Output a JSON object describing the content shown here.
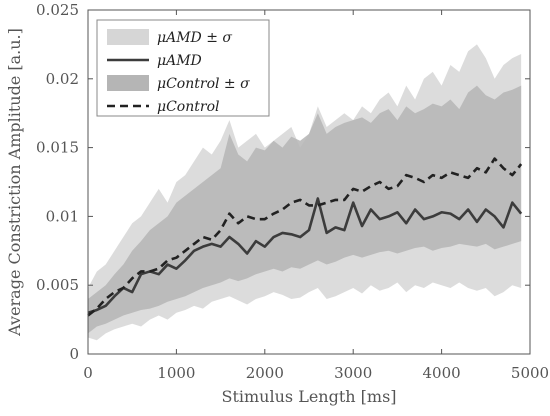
{
  "chart_data": {
    "type": "area",
    "xlabel": "Stimulus Length [ms]",
    "ylabel": "Average Constriction Amplitude [a.u.]",
    "xlim": [
      0,
      5000
    ],
    "ylim": [
      0,
      0.025
    ],
    "xticks": [
      0,
      1000,
      2000,
      3000,
      4000,
      5000
    ],
    "xtick_labels": [
      "0",
      "1000",
      "2000",
      "3000",
      "4000",
      "5000"
    ],
    "yticks": [
      0,
      0.005,
      0.01,
      0.015,
      0.02,
      0.025
    ],
    "ytick_labels": [
      "0",
      "0.005",
      "0.01",
      "0.015",
      "0.02",
      "0.025"
    ],
    "grid": false,
    "legend_position": "top-left",
    "legend": [
      {
        "label": "μAMD ± σ",
        "kind": "band",
        "color": "#d6d6d6"
      },
      {
        "label": "μAMD",
        "kind": "line",
        "color": "#3c3c3c"
      },
      {
        "label": "μControl ± σ",
        "kind": "band",
        "color": "#b5b5b5"
      },
      {
        "label": "μControl",
        "kind": "dashed",
        "color": "#222222"
      }
    ],
    "x": [
      0,
      100,
      200,
      300,
      400,
      500,
      600,
      700,
      800,
      900,
      1000,
      1100,
      1200,
      1300,
      1400,
      1500,
      1600,
      1700,
      1800,
      1900,
      2000,
      2100,
      2200,
      2300,
      2400,
      2500,
      2600,
      2700,
      2800,
      2900,
      3000,
      3100,
      3200,
      3300,
      3400,
      3500,
      3600,
      3700,
      3800,
      3900,
      4000,
      4100,
      4200,
      4300,
      4400,
      4500,
      4600,
      4700,
      4800,
      4900
    ],
    "series": [
      {
        "name": "μAMD ± σ",
        "kind": "band",
        "lower": [
          0.0012,
          0.001,
          0.0015,
          0.0018,
          0.002,
          0.0022,
          0.002,
          0.0025,
          0.0028,
          0.0025,
          0.003,
          0.0032,
          0.0035,
          0.0033,
          0.0038,
          0.004,
          0.0042,
          0.0039,
          0.0036,
          0.004,
          0.0042,
          0.0045,
          0.0043,
          0.004,
          0.0041,
          0.0045,
          0.0048,
          0.004,
          0.0042,
          0.0045,
          0.0048,
          0.0044,
          0.005,
          0.0046,
          0.0048,
          0.0052,
          0.0045,
          0.005,
          0.0048,
          0.0052,
          0.005,
          0.0048,
          0.0052,
          0.0048,
          0.0046,
          0.0048,
          0.0042,
          0.0045,
          0.005,
          0.0048
        ],
        "upper": [
          0.0048,
          0.006,
          0.0065,
          0.0075,
          0.0085,
          0.0095,
          0.01,
          0.011,
          0.012,
          0.011,
          0.0125,
          0.013,
          0.014,
          0.015,
          0.0145,
          0.0155,
          0.017,
          0.015,
          0.0155,
          0.016,
          0.015,
          0.0155,
          0.016,
          0.0165,
          0.015,
          0.016,
          0.018,
          0.0165,
          0.017,
          0.0175,
          0.017,
          0.018,
          0.0175,
          0.0185,
          0.019,
          0.018,
          0.0195,
          0.0185,
          0.02,
          0.0205,
          0.0195,
          0.021,
          0.0205,
          0.022,
          0.0225,
          0.0215,
          0.02,
          0.021,
          0.0215,
          0.0218
        ]
      },
      {
        "name": "μControl ± σ",
        "kind": "band",
        "lower": [
          0.0015,
          0.002,
          0.0022,
          0.0025,
          0.0028,
          0.003,
          0.0032,
          0.0033,
          0.0035,
          0.0038,
          0.004,
          0.0042,
          0.0045,
          0.0048,
          0.005,
          0.0052,
          0.0055,
          0.0053,
          0.0055,
          0.0058,
          0.006,
          0.0062,
          0.006,
          0.0063,
          0.0062,
          0.0065,
          0.0068,
          0.0065,
          0.0067,
          0.007,
          0.0072,
          0.007,
          0.0072,
          0.0074,
          0.0075,
          0.0073,
          0.0075,
          0.0077,
          0.0078,
          0.0075,
          0.0077,
          0.0078,
          0.008,
          0.0079,
          0.0078,
          0.008,
          0.0076,
          0.0078,
          0.008,
          0.0082
        ],
        "upper": [
          0.004,
          0.0045,
          0.005,
          0.0058,
          0.0065,
          0.0075,
          0.0082,
          0.009,
          0.0095,
          0.01,
          0.011,
          0.0115,
          0.012,
          0.0125,
          0.013,
          0.0135,
          0.016,
          0.0145,
          0.014,
          0.015,
          0.0148,
          0.0155,
          0.015,
          0.0158,
          0.0155,
          0.016,
          0.0175,
          0.016,
          0.0165,
          0.0168,
          0.017,
          0.0172,
          0.0168,
          0.0175,
          0.0178,
          0.017,
          0.018,
          0.0175,
          0.0178,
          0.0182,
          0.018,
          0.0185,
          0.0178,
          0.019,
          0.0195,
          0.0188,
          0.0185,
          0.019,
          0.0192,
          0.0195
        ]
      },
      {
        "name": "μAMD",
        "kind": "line",
        "y": [
          0.003,
          0.0032,
          0.0035,
          0.0042,
          0.0048,
          0.0045,
          0.0058,
          0.006,
          0.0058,
          0.0065,
          0.0062,
          0.0068,
          0.0075,
          0.0078,
          0.008,
          0.0078,
          0.0085,
          0.008,
          0.0073,
          0.0082,
          0.0078,
          0.0085,
          0.0088,
          0.0087,
          0.0085,
          0.009,
          0.0113,
          0.0088,
          0.0092,
          0.009,
          0.011,
          0.0093,
          0.0105,
          0.0098,
          0.01,
          0.0103,
          0.0095,
          0.0105,
          0.0098,
          0.01,
          0.0103,
          0.0102,
          0.0098,
          0.0105,
          0.0096,
          0.0105,
          0.01,
          0.0092,
          0.011,
          0.0102
        ]
      },
      {
        "name": "μControl",
        "kind": "dashed",
        "y": [
          0.0028,
          0.0033,
          0.004,
          0.0045,
          0.0048,
          0.0055,
          0.006,
          0.006,
          0.0062,
          0.0068,
          0.007,
          0.0075,
          0.008,
          0.0085,
          0.0083,
          0.009,
          0.0102,
          0.0095,
          0.01,
          0.0098,
          0.0098,
          0.0102,
          0.0105,
          0.011,
          0.0112,
          0.0108,
          0.0108,
          0.011,
          0.0112,
          0.0112,
          0.012,
          0.0118,
          0.0122,
          0.0125,
          0.012,
          0.0122,
          0.013,
          0.0128,
          0.0125,
          0.013,
          0.0128,
          0.0132,
          0.013,
          0.0128,
          0.0135,
          0.0132,
          0.0142,
          0.0135,
          0.013,
          0.0138
        ]
      }
    ]
  }
}
